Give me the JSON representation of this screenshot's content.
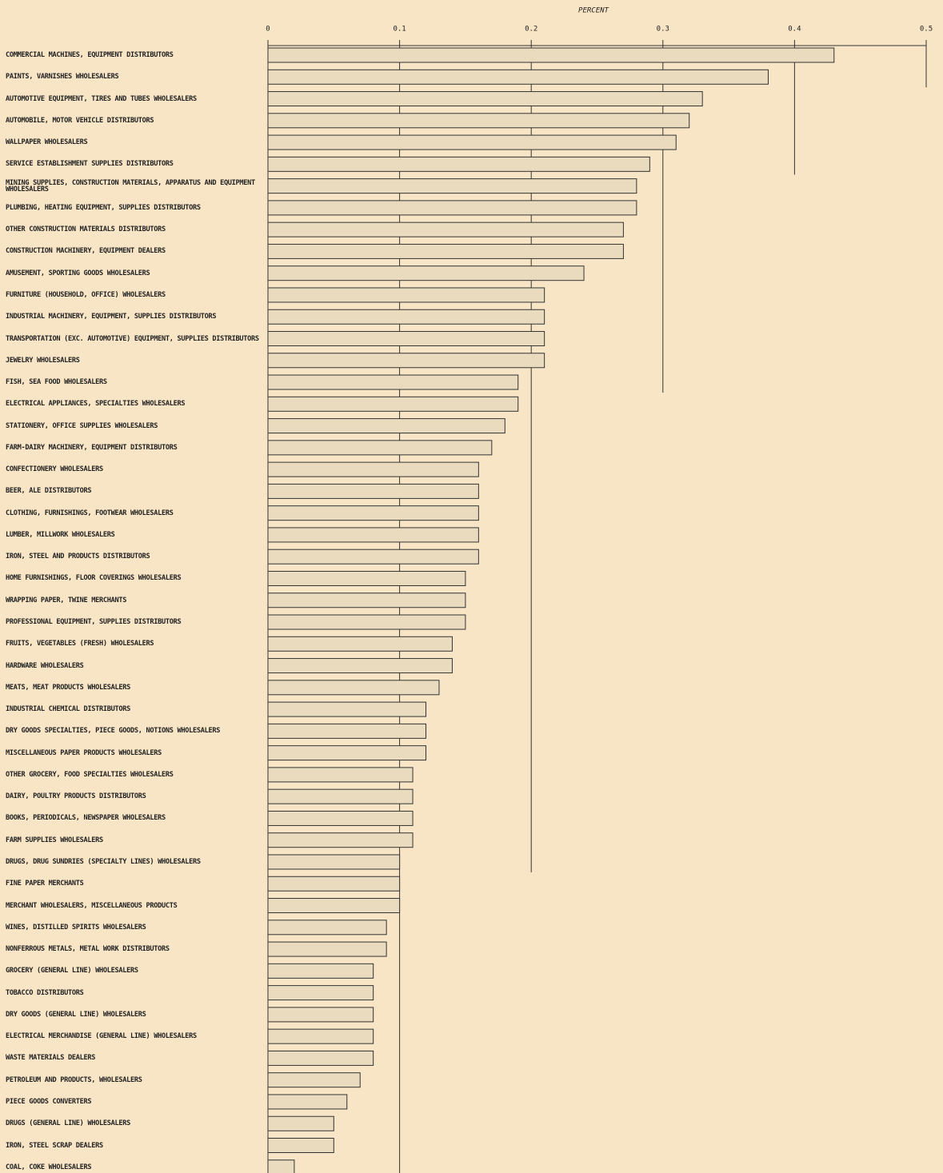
{
  "chart_data": {
    "type": "hbar",
    "xlabel": "PERCENT",
    "xlim": [
      0,
      0.5
    ],
    "xticks": [
      0,
      0.1,
      0.2,
      0.3,
      0.4,
      0.5
    ],
    "color": "#eadbbf",
    "categories": [
      "COMMERCIAL MACHINES, EQUIPMENT DISTRIBUTORS",
      "PAINTS, VARNISHES WHOLESALERS",
      "AUTOMOTIVE EQUIPMENT, TIRES AND TUBES WHOLESALERS",
      "AUTOMOBILE, MOTOR VEHICLE DISTRIBUTORS",
      "WALLPAPER WHOLESALERS",
      "SERVICE ESTABLISHMENT SUPPLIES DISTRIBUTORS",
      "MINING SUPPLIES, CONSTRUCTION MATERIALS, APPARATUS AND EQUIPMENT WHOLESALERS",
      "PLUMBING, HEATING EQUIPMENT, SUPPLIES DISTRIBUTORS",
      "OTHER CONSTRUCTION MATERIALS DISTRIBUTORS",
      "CONSTRUCTION MACHINERY, EQUIPMENT DEALERS",
      "AMUSEMENT, SPORTING GOODS WHOLESALERS",
      "FURNITURE (HOUSEHOLD, OFFICE) WHOLESALERS",
      "INDUSTRIAL MACHINERY, EQUIPMENT, SUPPLIES DISTRIBUTORS",
      "TRANSPORTATION (EXC. AUTOMOTIVE) EQUIPMENT, SUPPLIES DISTRIBUTORS",
      "JEWELRY WHOLESALERS",
      "FISH, SEA FOOD WHOLESALERS",
      "ELECTRICAL APPLIANCES, SPECIALTIES WHOLESALERS",
      "STATIONERY, OFFICE SUPPLIES WHOLESALERS",
      "FARM-DAIRY MACHINERY, EQUIPMENT DISTRIBUTORS",
      "CONFECTIONERY WHOLESALERS",
      "BEER, ALE DISTRIBUTORS",
      "CLOTHING, FURNISHINGS, FOOTWEAR WHOLESALERS",
      "LUMBER, MILLWORK WHOLESALERS",
      "IRON, STEEL AND PRODUCTS DISTRIBUTORS",
      "HOME FURNISHINGS, FLOOR COVERINGS WHOLESALERS",
      "WRAPPING PAPER, TWINE MERCHANTS",
      "PROFESSIONAL EQUIPMENT, SUPPLIES DISTRIBUTORS",
      "FRUITS, VEGETABLES (FRESH) WHOLESALERS",
      "HARDWARE WHOLESALERS",
      "MEATS, MEAT PRODUCTS WHOLESALERS",
      "INDUSTRIAL CHEMICAL DISTRIBUTORS",
      "DRY GOODS SPECIALTIES, PIECE GOODS, NOTIONS WHOLESALERS",
      "MISCELLANEOUS PAPER PRODUCTS WHOLESALERS",
      "OTHER GROCERY, FOOD SPECIALTIES WHOLESALERS",
      "DAIRY, POULTRY PRODUCTS DISTRIBUTORS",
      "BOOKS, PERIODICALS, NEWSPAPER WHOLESALERS",
      "FARM SUPPLIES WHOLESALERS",
      "DRUGS, DRUG SUNDRIES (SPECIALTY LINES) WHOLESALERS",
      "FINE PAPER MERCHANTS",
      "MERCHANT WHOLESALERS, MISCELLANEOUS PRODUCTS",
      "WINES, DISTILLED SPIRITS WHOLESALERS",
      "NONFERROUS METALS, METAL WORK DISTRIBUTORS",
      "GROCERY (GENERAL LINE) WHOLESALERS",
      "TOBACCO DISTRIBUTORS",
      "DRY GOODS (GENERAL LINE) WHOLESALERS",
      "ELECTRICAL MERCHANDISE (GENERAL LINE) WHOLESALERS",
      "WASTE MATERIALS DEALERS",
      "PETROLEUM AND PRODUCTS, WHOLESALERS",
      "PIECE GOODS CONVERTERS",
      "DRUGS (GENERAL LINE) WHOLESALERS",
      "IRON, STEEL SCRAP DEALERS",
      "COAL, COKE WHOLESALERS"
    ],
    "values": [
      0.43,
      0.38,
      0.33,
      0.32,
      0.31,
      0.29,
      0.28,
      0.28,
      0.27,
      0.27,
      0.24,
      0.21,
      0.21,
      0.21,
      0.21,
      0.19,
      0.19,
      0.18,
      0.17,
      0.16,
      0.16,
      0.16,
      0.16,
      0.16,
      0.15,
      0.15,
      0.15,
      0.14,
      0.14,
      0.13,
      0.12,
      0.12,
      0.12,
      0.11,
      0.11,
      0.11,
      0.11,
      0.1,
      0.1,
      0.1,
      0.09,
      0.09,
      0.08,
      0.08,
      0.08,
      0.08,
      0.08,
      0.07,
      0.06,
      0.05,
      0.05,
      0.02
    ]
  }
}
